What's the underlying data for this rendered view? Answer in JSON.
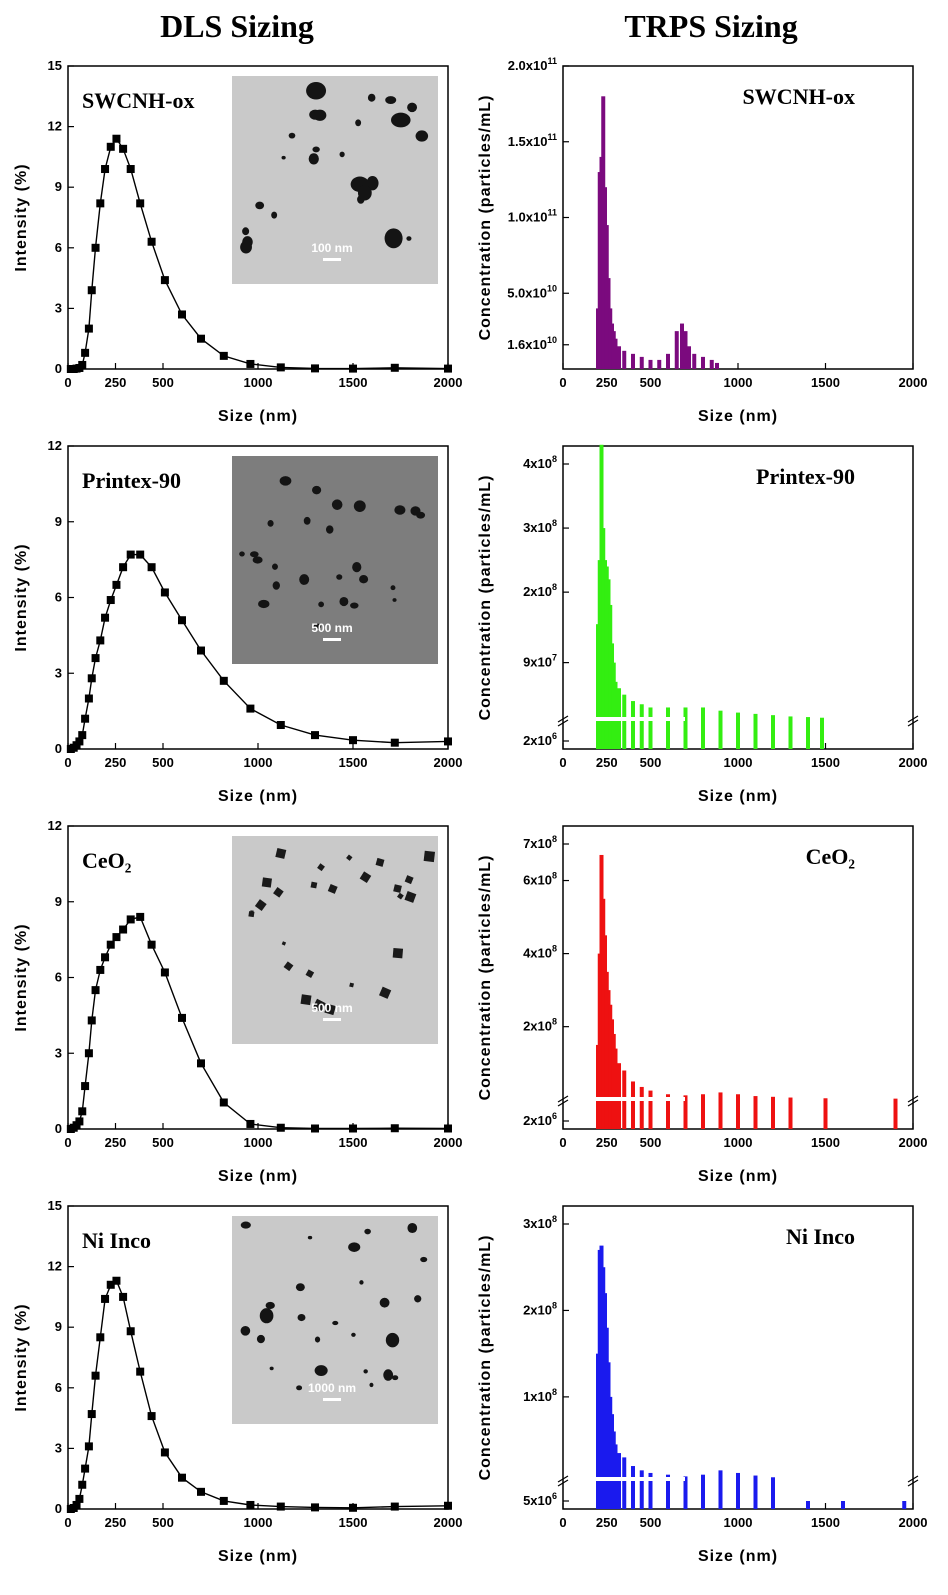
{
  "titles": {
    "left": "DLS Sizing",
    "right": "TRPS Sizing"
  },
  "dls_panels": [
    {
      "sample": "SWCNH-ox",
      "scale_bar": "100 nm",
      "inset_style": "light"
    },
    {
      "sample": "Printex-90",
      "scale_bar": "500 nm",
      "inset_style": "dark"
    },
    {
      "sample": "CeO₂",
      "scale_bar": "500 nm",
      "inset_style": "light"
    },
    {
      "sample": "Ni Inco",
      "scale_bar": "1000 nm",
      "inset_style": "light"
    }
  ],
  "trps_panels": [
    {
      "sample": "SWCNH-ox",
      "color": "#7B0A7E"
    },
    {
      "sample": "Printex-90",
      "color": "#33EE11"
    },
    {
      "sample": "CeO₂",
      "color": "#EE1111"
    },
    {
      "sample": "Ni Inco",
      "color": "#1A1AEE"
    }
  ],
  "chart_data": [
    {
      "type": "line",
      "sample": "SWCNH-ox",
      "xlabel": "Size (nm)",
      "ylabel": "Intensity (%)",
      "xlim": [
        0,
        2000
      ],
      "ylim": [
        0,
        15
      ],
      "xticks": [
        0,
        250,
        500,
        1000,
        1500,
        2000
      ],
      "yticks": [
        0,
        3,
        6,
        9,
        12,
        15
      ],
      "x": [
        15,
        30,
        45,
        60,
        75,
        90,
        110,
        125,
        145,
        170,
        195,
        225,
        255,
        290,
        330,
        380,
        440,
        510,
        600,
        700,
        820,
        960,
        1120,
        1300,
        1500,
        1720,
        2000
      ],
      "y": [
        0,
        0,
        0.02,
        0.05,
        0.2,
        0.8,
        2.0,
        3.9,
        6.0,
        8.2,
        9.9,
        11.0,
        11.4,
        10.9,
        9.9,
        8.2,
        6.3,
        4.4,
        2.7,
        1.5,
        0.65,
        0.25,
        0.08,
        0.03,
        0.02,
        0.06,
        0.02
      ]
    },
    {
      "type": "line",
      "sample": "Printex-90",
      "xlabel": "Size (nm)",
      "ylabel": "Intensity (%)",
      "xlim": [
        0,
        2000
      ],
      "ylim": [
        0,
        12
      ],
      "xticks": [
        0,
        250,
        500,
        1000,
        1500,
        2000
      ],
      "yticks": [
        0,
        3,
        6,
        9,
        12
      ],
      "x": [
        15,
        30,
        45,
        60,
        75,
        90,
        110,
        125,
        145,
        170,
        195,
        225,
        255,
        290,
        330,
        380,
        440,
        510,
        600,
        700,
        820,
        960,
        1120,
        1300,
        1500,
        1720,
        2000
      ],
      "y": [
        0,
        0.05,
        0.15,
        0.3,
        0.55,
        1.2,
        2.0,
        2.8,
        3.6,
        4.3,
        5.2,
        5.9,
        6.5,
        7.2,
        7.7,
        7.7,
        7.2,
        6.2,
        5.1,
        3.9,
        2.7,
        1.6,
        0.95,
        0.55,
        0.35,
        0.25,
        0.3
      ]
    },
    {
      "type": "line",
      "sample": "CeO₂",
      "xlabel": "Size (nm)",
      "ylabel": "Intensity (%)",
      "xlim": [
        0,
        2000
      ],
      "ylim": [
        0,
        12
      ],
      "xticks": [
        0,
        250,
        500,
        1000,
        1500,
        2000
      ],
      "yticks": [
        0,
        3,
        6,
        9,
        12
      ],
      "x": [
        15,
        30,
        45,
        60,
        75,
        90,
        110,
        125,
        145,
        170,
        195,
        225,
        255,
        290,
        330,
        380,
        440,
        510,
        600,
        700,
        820,
        960,
        1120,
        1300,
        1500,
        1720,
        2000
      ],
      "y": [
        0,
        0.05,
        0.15,
        0.3,
        0.7,
        1.7,
        3.0,
        4.3,
        5.5,
        6.3,
        6.8,
        7.3,
        7.6,
        7.9,
        8.3,
        8.4,
        7.3,
        6.2,
        4.4,
        2.6,
        1.05,
        0.2,
        0.05,
        0.02,
        0.02,
        0.03,
        0.02
      ]
    },
    {
      "type": "line",
      "sample": "Ni Inco",
      "xlabel": "Size (nm)",
      "ylabel": "Intensity (%)",
      "xlim": [
        0,
        2000
      ],
      "ylim": [
        0,
        15
      ],
      "xticks": [
        0,
        250,
        500,
        1000,
        1500,
        2000
      ],
      "yticks": [
        0,
        3,
        6,
        9,
        12,
        15
      ],
      "x": [
        15,
        30,
        45,
        60,
        75,
        90,
        110,
        125,
        145,
        170,
        195,
        225,
        255,
        290,
        330,
        380,
        440,
        510,
        600,
        700,
        820,
        960,
        1120,
        1300,
        1500,
        1720,
        2000
      ],
      "y": [
        0,
        0.05,
        0.2,
        0.5,
        1.2,
        2.0,
        3.1,
        4.7,
        6.6,
        8.5,
        10.4,
        11.1,
        11.3,
        10.5,
        8.8,
        6.8,
        4.6,
        2.8,
        1.55,
        0.85,
        0.4,
        0.2,
        0.12,
        0.08,
        0.06,
        0.12,
        0.16
      ]
    },
    {
      "type": "bar",
      "sample": "SWCNH-ox",
      "xlabel": "Size (nm)",
      "ylabel": "Concentration (particles/mL)",
      "xlim": [
        0,
        2000
      ],
      "xticks": [
        0,
        250,
        500,
        1000,
        1500,
        2000
      ],
      "ytick_labels": [
        "1.6x10^10",
        "5.0x10^10",
        "1.0x10^11",
        "1.5x10^11",
        "2.0x10^11"
      ],
      "ytick_values": [
        16000000000.0,
        50000000000.0,
        100000000000.0,
        150000000000.0,
        200000000000.0
      ],
      "ylim": [
        0,
        200000000000.0
      ],
      "x": [
        200,
        210,
        220,
        230,
        240,
        250,
        260,
        270,
        280,
        290,
        300,
        320,
        350,
        400,
        450,
        500,
        550,
        600,
        650,
        680,
        700,
        720,
        750,
        800,
        850,
        880
      ],
      "values": [
        40000000000.0,
        130000000000.0,
        140000000000.0,
        180000000000.0,
        120000000000.0,
        95000000000.0,
        60000000000.0,
        40000000000.0,
        30000000000.0,
        25000000000.0,
        20000000000.0,
        15000000000.0,
        12000000000.0,
        10000000000.0,
        8000000000.0,
        6000000000.0,
        6000000000.0,
        10000000000.0,
        25000000000.0,
        30000000000.0,
        25000000000.0,
        15000000000.0,
        10000000000.0,
        8000000000.0,
        6000000000.0,
        4000000000.0
      ]
    },
    {
      "type": "bar",
      "sample": "Printex-90",
      "xlabel": "Size (nm)",
      "ylabel": "Concentration (particles/mL)",
      "xlim": [
        0,
        2000
      ],
      "xticks": [
        0,
        250,
        500,
        1000,
        1500,
        2000
      ],
      "ytick_labels": [
        "2x10^6",
        "9x10^7",
        "2x10^8",
        "3x10^8",
        "4x10^8"
      ],
      "ytick_values": [
        2000000.0,
        90000000.0,
        200000000.0,
        300000000.0,
        400000000.0
      ],
      "axis_break": true,
      "x": [
        200,
        210,
        220,
        230,
        240,
        250,
        260,
        270,
        280,
        290,
        300,
        320,
        350,
        400,
        450,
        500,
        600,
        700,
        800,
        900,
        1000,
        1100,
        1200,
        1300,
        1400,
        1480
      ],
      "values": [
        150000000.0,
        250000000.0,
        430000000.0,
        300000000.0,
        250000000.0,
        240000000.0,
        220000000.0,
        180000000.0,
        120000000.0,
        90000000.0,
        60000000.0,
        50000000.0,
        40000000.0,
        30000000.0,
        25000000.0,
        20000000.0,
        20000000.0,
        20000000.0,
        20000000.0,
        15000000.0,
        12000000.0,
        10000000.0,
        8000000.0,
        6000000.0,
        5000000.0,
        4000000.0
      ]
    },
    {
      "type": "bar",
      "sample": "CeO₂",
      "xlabel": "Size (nm)",
      "ylabel": "Concentration (particles/mL)",
      "xlim": [
        0,
        2000
      ],
      "xticks": [
        0,
        250,
        500,
        1000,
        1500,
        2000
      ],
      "ytick_labels": [
        "2x10^6",
        "2x10^8",
        "4x10^8",
        "6x10^8",
        "7x10^8"
      ],
      "ytick_values": [
        2000000.0,
        200000000.0,
        400000000.0,
        600000000.0,
        700000000.0
      ],
      "axis_break": true,
      "x": [
        200,
        210,
        220,
        230,
        240,
        250,
        260,
        270,
        280,
        290,
        300,
        320,
        350,
        400,
        450,
        500,
        600,
        700,
        800,
        900,
        1000,
        1100,
        1200,
        1300,
        1500,
        1900
      ],
      "values": [
        150000000.0,
        400000000.0,
        670000000.0,
        550000000.0,
        450000000.0,
        350000000.0,
        300000000.0,
        260000000.0,
        220000000.0,
        180000000.0,
        140000000.0,
        100000000.0,
        80000000.0,
        50000000.0,
        35000000.0,
        25000000.0,
        15000000.0,
        12000000.0,
        15000000.0,
        20000000.0,
        15000000.0,
        10000000.0,
        8000000.0,
        6000000.0,
        4000000.0,
        3000000.0
      ]
    },
    {
      "type": "bar",
      "sample": "Ni Inco",
      "xlabel": "Size (nm)",
      "ylabel": "Concentration (particles/mL)",
      "xlim": [
        0,
        2000
      ],
      "xticks": [
        0,
        250,
        500,
        1000,
        1500,
        2000
      ],
      "ytick_labels": [
        "5x10^6",
        "1x10^8",
        "2x10^8",
        "3x10^8"
      ],
      "ytick_values": [
        5000000.0,
        100000000.0,
        200000000.0,
        300000000.0
      ],
      "axis_break": true,
      "x": [
        200,
        210,
        220,
        230,
        240,
        250,
        260,
        270,
        280,
        290,
        300,
        320,
        350,
        400,
        450,
        500,
        600,
        700,
        800,
        900,
        1000,
        1100,
        1200,
        1400,
        1600,
        1950
      ],
      "values": [
        150000000.0,
        270000000.0,
        275000000.0,
        250000000.0,
        220000000.0,
        180000000.0,
        140000000.0,
        100000000.0,
        80000000.0,
        60000000.0,
        45000000.0,
        35000000.0,
        30000000.0,
        20000000.0,
        15000000.0,
        12000000.0,
        10000000.0,
        8000000.0,
        10000000.0,
        15000000.0,
        12000000.0,
        9000000.0,
        7000000.0,
        5000000.0,
        4000000.0,
        3000000.0
      ]
    }
  ]
}
